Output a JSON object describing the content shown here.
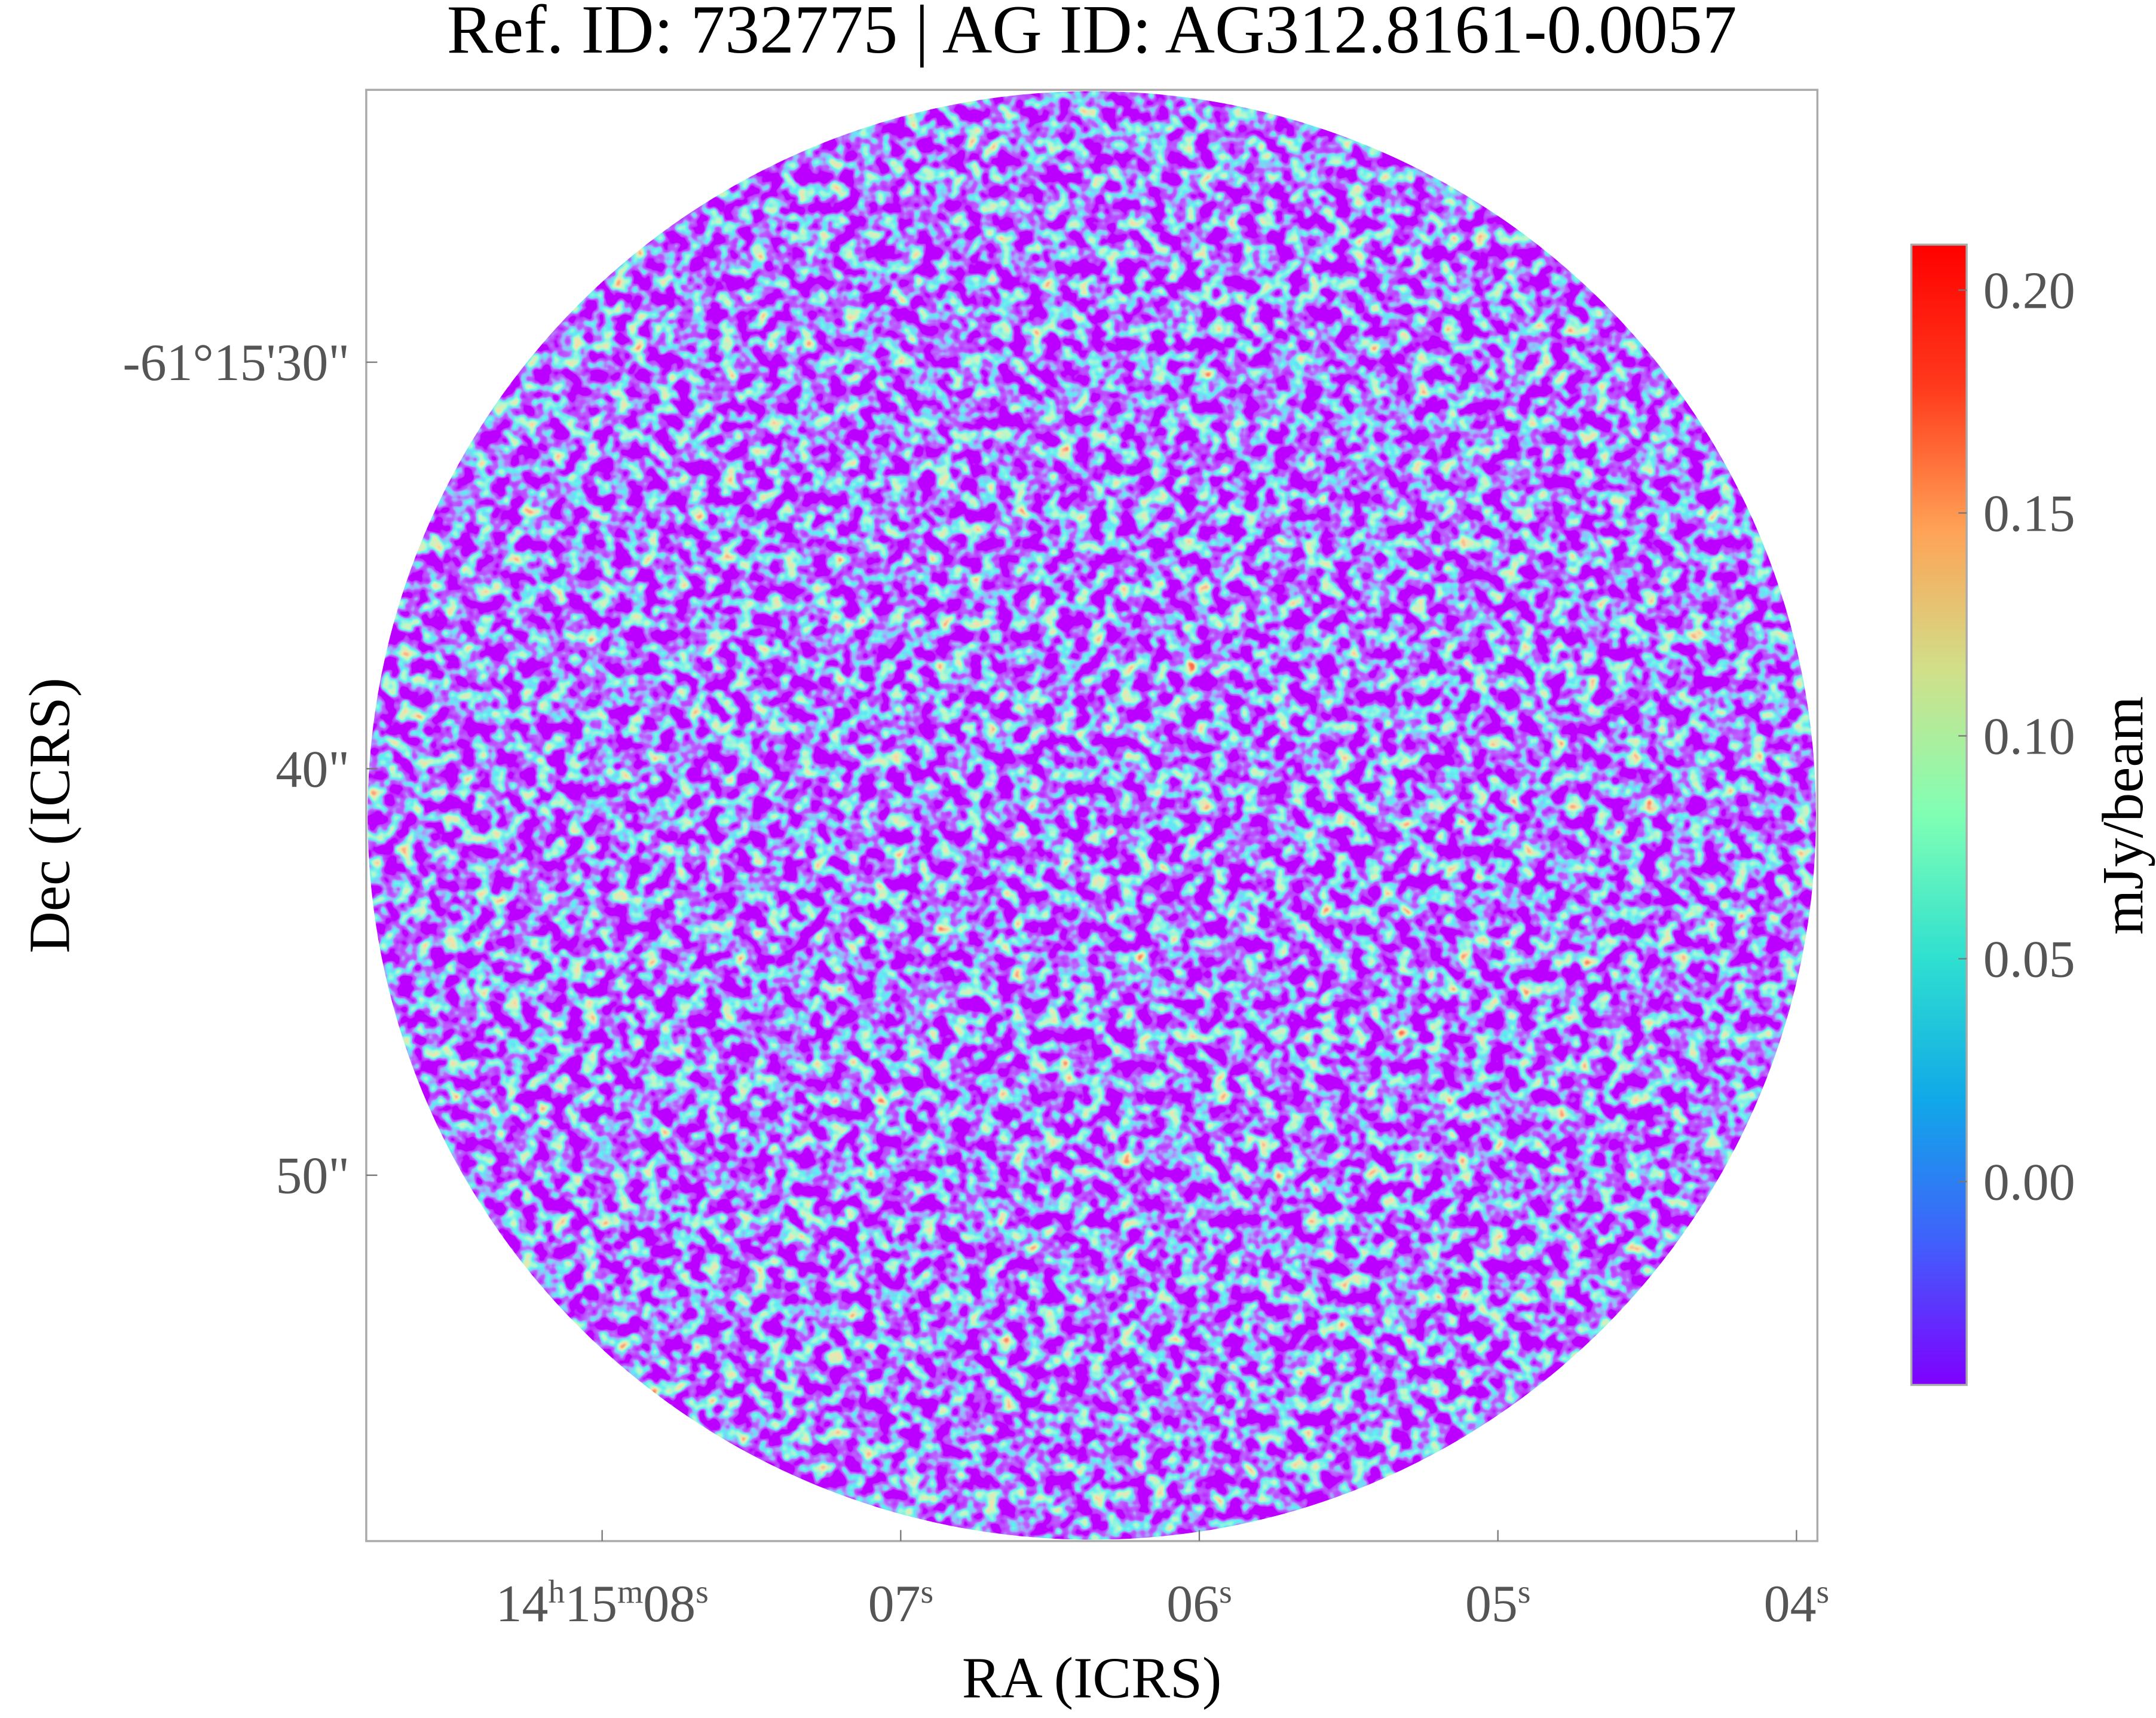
{
  "chart_data": {
    "type": "image",
    "title": "Ref. ID: 732775 | AG ID: AG312.8161-0.0057",
    "xlabel": "RA (ICRS)",
    "ylabel": "Dec (ICRS)",
    "xlim": [
      8.79,
      3.93
    ],
    "xticks": [
      {
        "value": 8,
        "label": [
          "14",
          "h",
          "15",
          "m",
          "08",
          "s"
        ]
      },
      {
        "value": 7,
        "label": [
          "07",
          "s"
        ]
      },
      {
        "value": 6,
        "label": [
          "06",
          "s"
        ]
      },
      {
        "value": 5,
        "label": [
          "05",
          "s"
        ]
      },
      {
        "value": 4,
        "label": [
          "04",
          "s"
        ]
      }
    ],
    "ylim": [
      59.0,
      23.3
    ],
    "yticks": [
      {
        "value": 30,
        "label": "-61°15'30\""
      },
      {
        "value": 40,
        "label": "40\""
      },
      {
        "value": 50,
        "label": "50\""
      }
    ],
    "colorbar": {
      "label": "mJy/beam",
      "colormap": "rainbow",
      "lim": [
        -0.0456,
        0.2102
      ],
      "ticks": [
        {
          "value": 0,
          "label": "0.00"
        },
        {
          "value": 0.05,
          "label": "0.05"
        },
        {
          "value": 0.1,
          "label": "0.10"
        },
        {
          "value": 0.15,
          "label": "0.15"
        },
        {
          "value": 0.2,
          "label": "0.20"
        }
      ]
    }
  }
}
